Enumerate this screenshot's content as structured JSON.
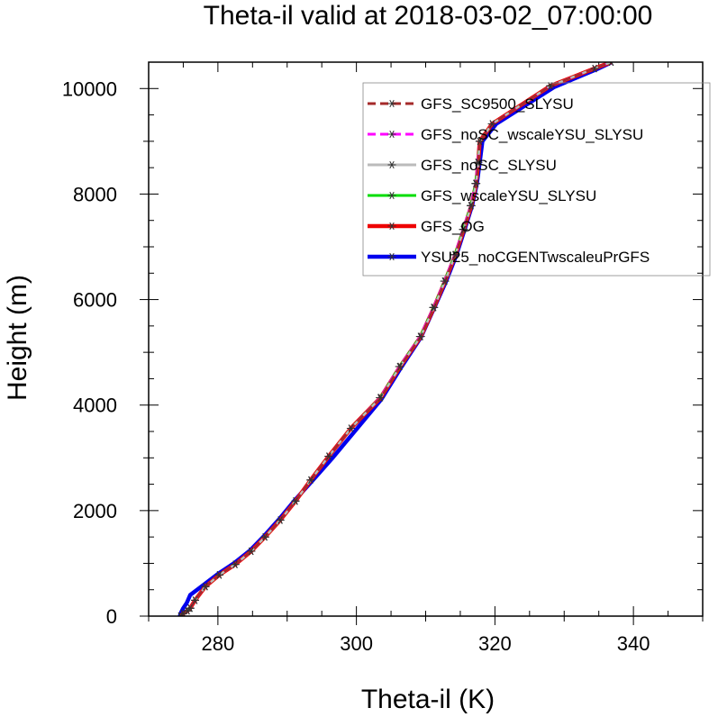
{
  "chart_data": {
    "type": "line",
    "title": "Theta-il valid at 2018-03-02_07:00:00",
    "xlabel": "Theta-il (K)",
    "ylabel": "Height (m)",
    "xlim": [
      270,
      350
    ],
    "ylim": [
      0,
      10500
    ],
    "xticks": [
      280,
      300,
      320,
      340
    ],
    "yticks": [
      0,
      2000,
      4000,
      6000,
      8000,
      10000
    ],
    "grid": false,
    "legend_position": "top-right",
    "series": [
      {
        "name": "GFS_SC9500_SLYSU",
        "color": "#a52a2a",
        "style": "dashed",
        "marker": "asterisk",
        "x": [
          274.6,
          275.0,
          275.6,
          276.0,
          276.7,
          278.2,
          280.2,
          282.5,
          284.8,
          286.8,
          289.0,
          291.2,
          293.4,
          296.0,
          299.2,
          303.5,
          306.3,
          309.3,
          311.2,
          312.8,
          314.3,
          315.5,
          316.6,
          317.3,
          317.6,
          317.8,
          319.6,
          328.0,
          334.4,
          336.8
        ],
        "y": [
          0,
          50,
          100,
          150,
          300,
          560,
          780,
          980,
          1230,
          1500,
          1820,
          2180,
          2580,
          3030,
          3560,
          4140,
          4730,
          5300,
          5850,
          6350,
          6850,
          7330,
          7780,
          8200,
          8600,
          9000,
          9330,
          10050,
          10380,
          10500
        ]
      },
      {
        "name": "GFS_noSC_wscaleYSU_SLYSU",
        "color": "#ff00ff",
        "style": "dashed",
        "marker": "asterisk",
        "x": [
          274.6,
          275.0,
          275.6,
          276.0,
          276.7,
          278.2,
          280.2,
          282.5,
          284.8,
          286.8,
          289.0,
          291.2,
          293.4,
          296.0,
          299.2,
          303.4,
          306.2,
          309.2,
          311.1,
          312.7,
          314.2,
          315.4,
          316.5,
          317.2,
          317.5,
          317.8,
          319.6,
          328.0,
          334.4,
          336.8
        ],
        "y": [
          0,
          50,
          100,
          150,
          300,
          560,
          780,
          980,
          1230,
          1500,
          1820,
          2180,
          2580,
          3030,
          3560,
          4140,
          4730,
          5300,
          5850,
          6350,
          6850,
          7330,
          7780,
          8200,
          8600,
          9000,
          9330,
          10050,
          10380,
          10500
        ]
      },
      {
        "name": "GFS_noSC_SLYSU",
        "color": "#bbbbbb",
        "style": "solid",
        "marker": "asterisk",
        "x": [
          274.6,
          275.0,
          275.6,
          276.0,
          276.7,
          278.2,
          280.2,
          282.5,
          284.8,
          286.8,
          289.0,
          291.2,
          293.4,
          296.0,
          299.2,
          303.5,
          306.3,
          309.3,
          311.2,
          312.8,
          314.3,
          315.5,
          316.6,
          317.3,
          317.6,
          317.8,
          319.6,
          328.0,
          334.4,
          336.8
        ],
        "y": [
          0,
          50,
          100,
          150,
          300,
          560,
          780,
          980,
          1230,
          1500,
          1820,
          2180,
          2580,
          3030,
          3560,
          4140,
          4730,
          5300,
          5850,
          6350,
          6850,
          7330,
          7780,
          8200,
          8600,
          9000,
          9330,
          10050,
          10380,
          10500
        ]
      },
      {
        "name": "GFS_wscaleYSU_SLYSU",
        "color": "#00dd00",
        "style": "solid",
        "marker": "asterisk",
        "x": [
          274.6,
          275.0,
          275.6,
          276.0,
          276.7,
          278.2,
          280.2,
          282.5,
          284.8,
          286.8,
          289.0,
          291.2,
          293.4,
          296.0,
          299.2,
          303.4,
          306.2,
          309.2,
          311.1,
          312.7,
          314.2,
          315.4,
          316.5,
          317.2,
          317.5,
          317.8,
          319.6,
          328.0,
          334.4,
          336.8
        ],
        "y": [
          0,
          50,
          100,
          150,
          300,
          560,
          780,
          980,
          1230,
          1500,
          1820,
          2180,
          2580,
          3030,
          3560,
          4140,
          4730,
          5300,
          5850,
          6350,
          6850,
          7330,
          7780,
          8200,
          8600,
          9000,
          9330,
          10050,
          10380,
          10500
        ]
      },
      {
        "name": "GFS_OG",
        "color": "#ee0000",
        "style": "solid",
        "marker": "none",
        "x": [
          274.6,
          275.0,
          275.6,
          276.0,
          276.7,
          278.2,
          280.2,
          282.5,
          284.8,
          286.8,
          289.0,
          291.2,
          293.4,
          296.0,
          299.2,
          303.5,
          306.3,
          309.3,
          311.2,
          312.8,
          314.3,
          315.5,
          316.6,
          317.3,
          317.6,
          317.8,
          319.6,
          328.0,
          334.4,
          336.8
        ],
        "y": [
          0,
          50,
          100,
          150,
          300,
          560,
          780,
          980,
          1230,
          1500,
          1820,
          2180,
          2580,
          3030,
          3560,
          4140,
          4730,
          5300,
          5850,
          6350,
          6850,
          7330,
          7780,
          8200,
          8600,
          9000,
          9330,
          10050,
          10380,
          10500
        ]
      },
      {
        "name": "YSU25_noCGENTwscaleuPrGFS",
        "color": "#0000ee",
        "style": "solid",
        "marker": "none",
        "x": [
          274.5,
          274.6,
          275.0,
          275.5,
          276.0,
          278.0,
          280.0,
          282.3,
          284.6,
          286.6,
          288.8,
          291.0,
          293.6,
          296.5,
          299.8,
          303.6,
          306.4,
          309.3,
          311.2,
          312.9,
          314.4,
          315.6,
          316.7,
          317.4,
          317.8,
          318.2,
          320.2,
          328.6,
          334.8,
          336.9
        ],
        "y": [
          0,
          50,
          150,
          250,
          400,
          600,
          800,
          1000,
          1240,
          1510,
          1830,
          2180,
          2560,
          2990,
          3510,
          4110,
          4700,
          5280,
          5830,
          6330,
          6830,
          7320,
          7780,
          8200,
          8600,
          9000,
          9330,
          10030,
          10370,
          10500
        ]
      }
    ]
  }
}
